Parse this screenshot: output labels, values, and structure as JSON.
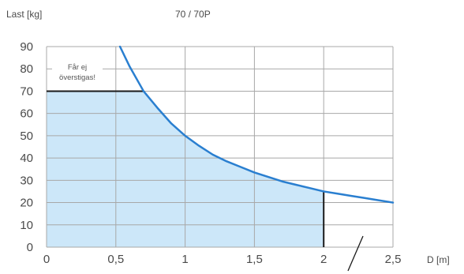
{
  "chart_data": {
    "type": "area",
    "title": "70 / 70P",
    "xlabel": "D [m]",
    "ylabel": "Last [kg]",
    "xlim": [
      0,
      2.5
    ],
    "ylim": [
      0,
      90
    ],
    "x_ticks": [
      0,
      0.5,
      1,
      1.5,
      2,
      2.5
    ],
    "x_tick_labels": [
      "0",
      "0,5",
      "1",
      "1,5",
      "2",
      "2,5"
    ],
    "y_ticks": [
      0,
      10,
      20,
      30,
      40,
      50,
      60,
      70,
      80,
      90
    ],
    "y_tick_labels": [
      "0",
      "10",
      "20",
      "30",
      "40",
      "50",
      "60",
      "70",
      "80",
      "90"
    ],
    "grid": true,
    "series": [
      {
        "x": [
          0.53,
          0.6,
          0.7,
          0.8,
          0.9,
          1.0,
          1.1,
          1.2,
          1.3,
          1.4,
          1.5,
          1.6,
          1.7,
          1.8,
          1.9,
          2.0,
          2.1,
          2.2,
          2.3,
          2.4,
          2.5
        ],
        "y": [
          90,
          81,
          70,
          62.5,
          55.5,
          50,
          45.5,
          41.5,
          38.5,
          36,
          33.5,
          31.5,
          29.5,
          28,
          26.5,
          25,
          24,
          23,
          22,
          21,
          20
        ]
      }
    ],
    "max_load_line": {
      "y": 70,
      "x_from": 0,
      "x_to": 0.7
    },
    "limit_marker": {
      "x": 2,
      "y_top": 25
    },
    "shaded_region": {
      "x_from": 0,
      "x_to": 2,
      "y_cap": 70
    },
    "annotation": "Får ej överstigas!",
    "colors": {
      "curve": "#2a7fd0",
      "fill": "#cce7f9",
      "grid": "#a8a8a8",
      "black": "#1a1a1a"
    }
  }
}
